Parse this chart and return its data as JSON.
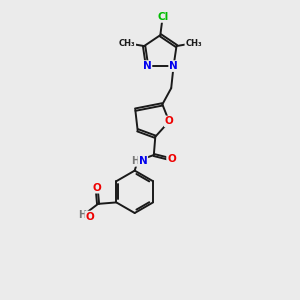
{
  "bg_color": "#ebebeb",
  "bond_color": "#1a1a1a",
  "bond_width": 1.4,
  "atom_colors": {
    "N": "#0000ee",
    "O": "#ee0000",
    "Cl": "#00bb00",
    "H": "#777777",
    "C": "#1a1a1a"
  },
  "font_size": 7.5
}
